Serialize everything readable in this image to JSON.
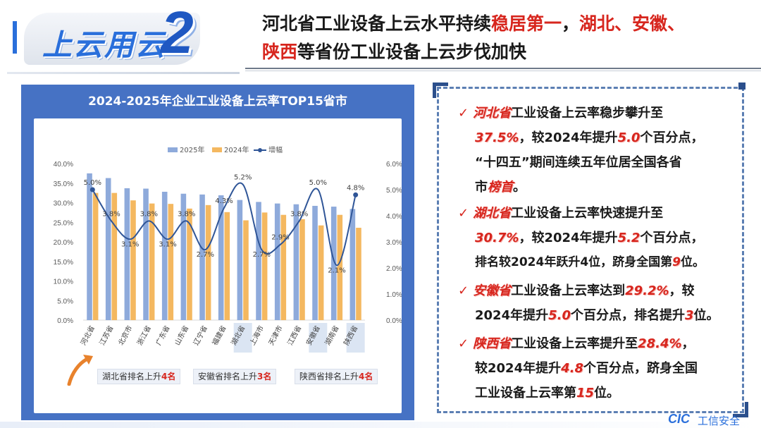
{
  "header": {
    "logo_text": "上云用云",
    "logo_number": "2",
    "title_line1_a": "河北省工业设备上云水平持续",
    "title_line1_red": "稳居第一",
    "title_line1_b": "，",
    "title_line1_red2": "湖北、安徽、",
    "title_line2_red": "陕西",
    "title_line2_b": "等省份工业设备上云步伐加快"
  },
  "chart_data": {
    "type": "bar",
    "title": "2024-2025年企业工业设备上云率TOP15省市",
    "categories": [
      "河北省",
      "江苏省",
      "北京市",
      "浙江省",
      "广东省",
      "山东省",
      "辽宁省",
      "福建省",
      "湖北省",
      "上海市",
      "天津市",
      "江西省",
      "安徽省",
      "湖南省",
      "陕西省"
    ],
    "highlighted_categories": [
      "湖北省",
      "安徽省",
      "陕西省"
    ],
    "series": [
      {
        "name": "2025年",
        "type": "bar",
        "color": "#8eaadb",
        "values": [
          37.5,
          36.3,
          33.7,
          33.6,
          32.8,
          32.3,
          32.1,
          31.9,
          30.7,
          30.2,
          29.8,
          29.6,
          29.2,
          29.0,
          28.4
        ]
      },
      {
        "name": "2024年",
        "type": "bar",
        "color": "#f4b860",
        "values": [
          32.5,
          32.5,
          30.6,
          29.8,
          29.7,
          28.5,
          29.4,
          27.6,
          25.5,
          27.5,
          26.9,
          25.8,
          24.2,
          26.9,
          23.6
        ]
      },
      {
        "name": "增幅",
        "type": "line",
        "color": "#2f5597",
        "values": [
          5.0,
          3.8,
          3.1,
          3.8,
          3.1,
          3.8,
          2.7,
          4.3,
          5.2,
          2.7,
          2.9,
          3.8,
          5.0,
          2.1,
          4.8
        ]
      }
    ],
    "value_labels": [
      "5.0%",
      "3.8%",
      "3.1%",
      "3.8%",
      "3.1%",
      "3.8%",
      "2.7%",
      "4.3%",
      "5.2%",
      "2.7%",
      "2.9%",
      "3.8%",
      "5.0%",
      "2.1%",
      "4.8%"
    ],
    "y_left": {
      "min": 0,
      "max": 40,
      "ticks": [
        "0.0%",
        "5.0%",
        "10.0%",
        "15.0%",
        "20.0%",
        "25.0%",
        "30.0%",
        "35.0%",
        "40.0%"
      ]
    },
    "y_right": {
      "min": 0,
      "max": 6,
      "ticks": [
        "0.0%",
        "1.0%",
        "2.0%",
        "3.0%",
        "4.0%",
        "5.0%",
        "6.0%"
      ]
    },
    "legend_position": "top",
    "grid": false
  },
  "rank_notes": [
    {
      "label": "湖北省排名上升",
      "num": "4",
      "suffix": "名"
    },
    {
      "label": "安徽省排名上升",
      "num": "3",
      "suffix": "名"
    },
    {
      "label": "陕西省排名上升",
      "num": "4",
      "suffix": "名"
    }
  ],
  "bullets": {
    "b1": {
      "prov": "河北省",
      "t1": "工业设备上云率稳步攀升至",
      "v1": "37.5%",
      "t2": "，较2024年提升",
      "v2": "5.0",
      "t3": "个百分点，",
      "t4": "“十四五”期间连续五年位居全国各省",
      "t5": "市",
      "v3": "榜首",
      "t6": "。"
    },
    "b2": {
      "prov": "湖北省",
      "t1": "工业设备上云率快速提升至",
      "v1": "30.7%",
      "t2": "，较2024年提升",
      "v2": "5.2",
      "t3": "个百分点，",
      "t4": "排名较2024年跃升4位，跻身全国第",
      "v3": "9",
      "t5": "位。"
    },
    "b3": {
      "prov": "安徽省",
      "t1": "工业设备上云率达到",
      "v1": "29.2%",
      "t2": "，较",
      "t3": "2024年提升",
      "v2": "5.0",
      "t4": "个百分点，排名提升",
      "v3": "3",
      "t5": "位。"
    },
    "b4": {
      "prov": "陕西省",
      "t1": "工业设备上云率提升至",
      "v1": "28.4%",
      "t2": "，",
      "t3": "较2024年提升",
      "v2": "4.8",
      "t4": "个百分点，跻身全国",
      "t5": "工业设备上云率第",
      "v3": "15",
      "t6": "位。"
    }
  },
  "footer": {
    "logo": "CIC",
    "text": "工信安全"
  }
}
